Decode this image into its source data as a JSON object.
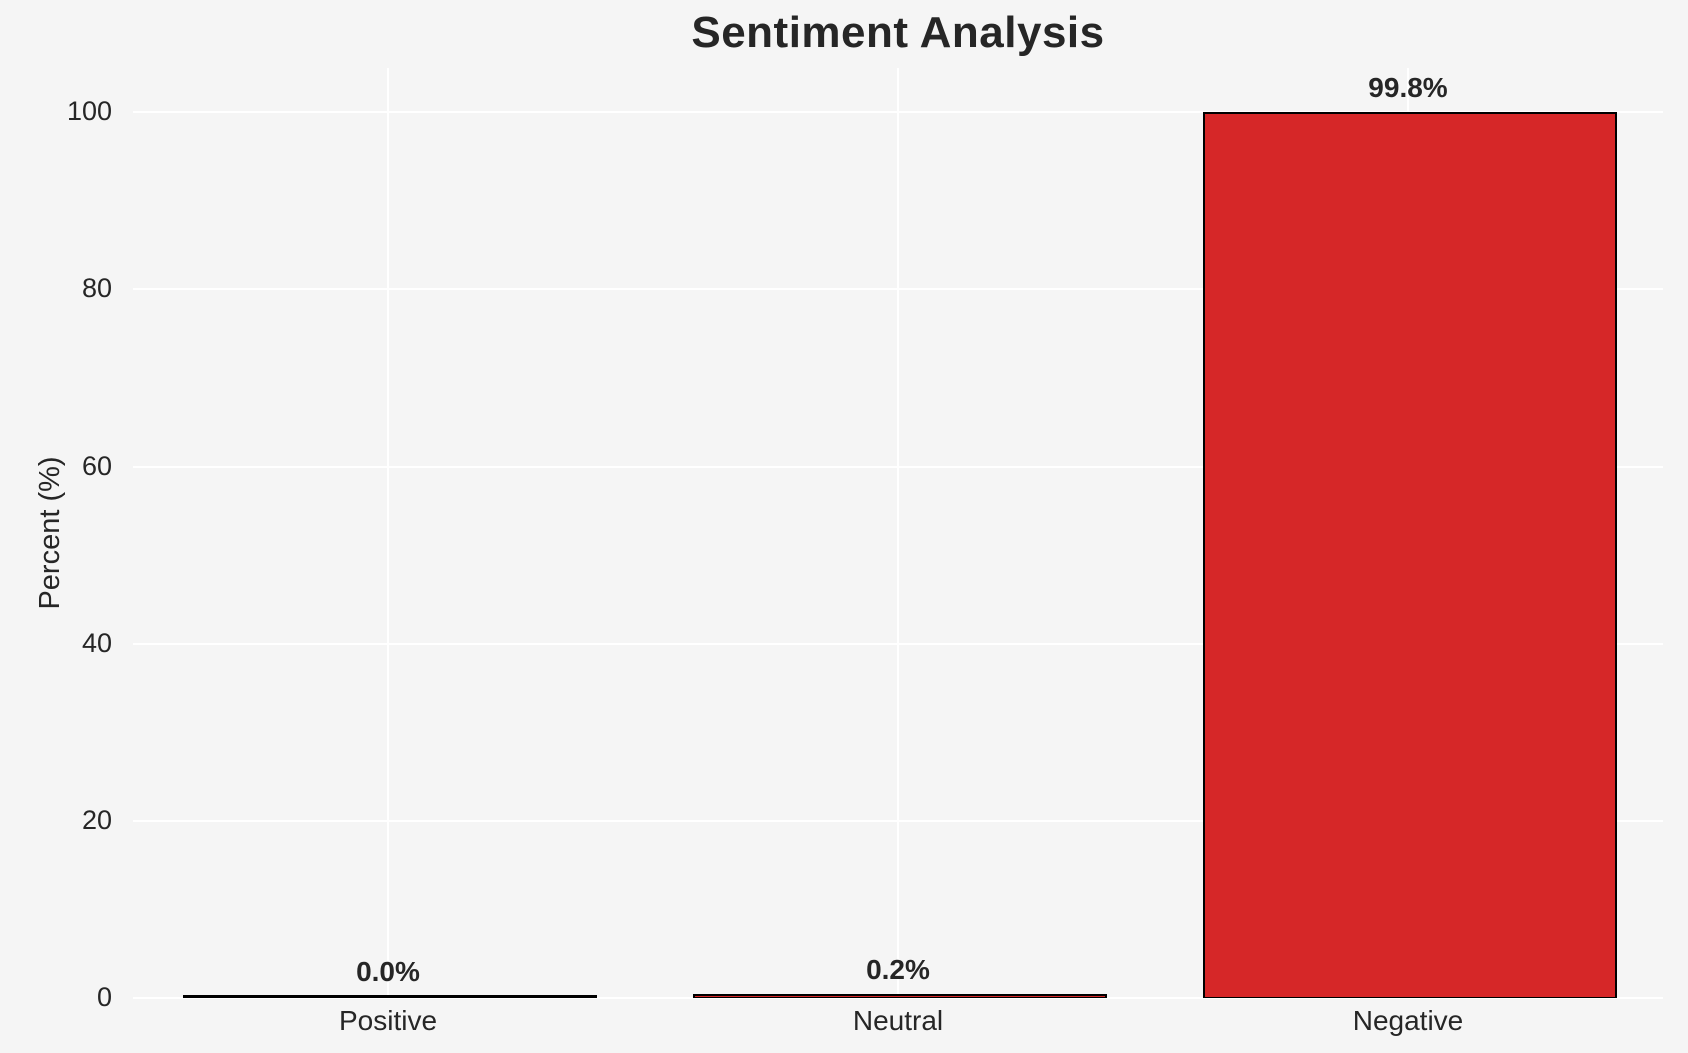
{
  "chart_data": {
    "type": "bar",
    "title": "Sentiment Analysis",
    "xlabel": "",
    "ylabel": "Percent (%)",
    "categories": [
      "Positive",
      "Neutral",
      "Negative"
    ],
    "values": [
      0.0,
      0.2,
      99.8
    ],
    "value_labels": [
      "0.0%",
      "0.2%",
      "99.8%"
    ],
    "yticks": [
      0,
      20,
      40,
      60,
      80,
      100
    ],
    "ylim": [
      0,
      105
    ],
    "grid": true,
    "legend": false,
    "colors": {
      "background": "#f5f5f5",
      "gridline": "#ffffff",
      "bar_fill": "#d62728",
      "bar_edge": "#000000",
      "text": "#262626"
    }
  }
}
